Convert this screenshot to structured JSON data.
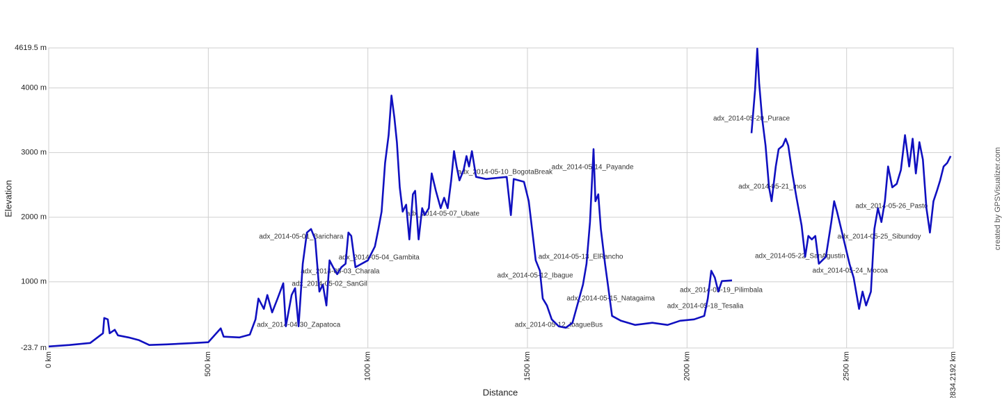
{
  "chart_data": {
    "type": "line",
    "color": "#1010c0",
    "grid": true,
    "xlabel": "Distance",
    "ylabel": "Elevation",
    "credit": "created by GPSVisualizer.com",
    "xlim": [
      0,
      2834.2192
    ],
    "ylim": [
      -23.7,
      4619.5
    ],
    "xticks": [
      {
        "value": 0,
        "label": "0 km"
      },
      {
        "value": 500,
        "label": "500 km"
      },
      {
        "value": 1000,
        "label": "1000 km"
      },
      {
        "value": 1500,
        "label": "1500 km"
      },
      {
        "value": 2000,
        "label": "2000 km"
      },
      {
        "value": 2500,
        "label": "2500 km"
      },
      {
        "value": 2834.2192,
        "label": "2834.2192 km"
      }
    ],
    "yticks": [
      {
        "value": -23.7,
        "label": "-23.7 m"
      },
      {
        "value": 1000,
        "label": "1000 m"
      },
      {
        "value": 2000,
        "label": "2000 m"
      },
      {
        "value": 3000,
        "label": "3000 m"
      },
      {
        "value": 4000,
        "label": "4000 m"
      },
      {
        "value": 4619.5,
        "label": "4619.5 m"
      }
    ],
    "x": [
      0,
      65,
      130,
      170,
      174,
      185,
      191,
      207,
      217,
      250,
      283,
      315,
      370,
      457,
      500,
      539,
      548,
      598,
      630,
      648,
      657,
      674,
      685,
      700,
      717,
      735,
      743,
      761,
      772,
      783,
      796,
      809,
      822,
      835,
      848,
      859,
      870,
      880,
      891,
      904,
      917,
      930,
      939,
      948,
      961,
      1000,
      1022,
      1033,
      1043,
      1054,
      1065,
      1074,
      1083,
      1091,
      1100,
      1109,
      1120,
      1130,
      1141,
      1148,
      1159,
      1170,
      1178,
      1191,
      1200,
      1213,
      1228,
      1239,
      1250,
      1261,
      1270,
      1278,
      1287,
      1300,
      1309,
      1317,
      1326,
      1339,
      1370,
      1435,
      1448,
      1457,
      1489,
      1504,
      1517,
      1526,
      1539,
      1548,
      1561,
      1576,
      1598,
      1620,
      1641,
      1674,
      1685,
      1696,
      1707,
      1713,
      1722,
      1730,
      1743,
      1752,
      1765,
      1793,
      1837,
      1891,
      1939,
      1978,
      2022,
      2054,
      2065,
      2076,
      2087,
      2098,
      2109,
      2141,
      2170,
      2202,
      2213,
      2220,
      2226,
      2235,
      2246,
      2257,
      2265,
      2278,
      2287,
      2300,
      2309,
      2317,
      2330,
      2343,
      2359,
      2370,
      2380,
      2391,
      2402,
      2413,
      2435,
      2452,
      2461,
      2470,
      2483,
      2496,
      2509,
      2522,
      2539,
      2550,
      2561,
      2576,
      2587,
      2598,
      2609,
      2620,
      2630,
      2643,
      2657,
      2670,
      2683,
      2696,
      2707,
      2717,
      2728,
      2739,
      2750,
      2761,
      2772,
      2783,
      2793,
      2804,
      2815,
      2826
    ],
    "values": [
      0,
      22,
      54,
      204,
      441,
      419,
      204,
      258,
      172,
      140,
      97,
      22,
      32,
      54,
      65,
      280,
      151,
      140,
      183,
      419,
      742,
      581,
      796,
      527,
      742,
      978,
      312,
      796,
      903,
      312,
      1280,
      1763,
      1817,
      1656,
      849,
      957,
      634,
      1333,
      1226,
      1118,
      1226,
      1280,
      1763,
      1710,
      1226,
      1333,
      1548,
      1817,
      2086,
      2839,
      3269,
      3882,
      3538,
      3161,
      2462,
      2086,
      2194,
      1656,
      2355,
      2409,
      1656,
      2140,
      2032,
      2140,
      2677,
      2409,
      2140,
      2301,
      2140,
      2570,
      3022,
      2785,
      2570,
      2731,
      2946,
      2785,
      3022,
      2624,
      2591,
      2624,
      2032,
      2591,
      2548,
      2247,
      1710,
      1333,
      1172,
      742,
      634,
      419,
      312,
      290,
      366,
      957,
      1280,
      1925,
      3054,
      2247,
      2355,
      1817,
      1280,
      957,
      473,
      398,
      333,
      366,
      333,
      398,
      419,
      473,
      742,
      1172,
      1065,
      849,
      1011,
      1022,
      null,
      3301,
      3968,
      4610,
      4075,
      3538,
      3108,
      2462,
      2247,
      2785,
      3054,
      3108,
      3215,
      3108,
      2677,
      2301,
      1871,
      1387,
      1710,
      1656,
      1710,
      1280,
      1387,
      1925,
      2247,
      2086,
      1817,
      1548,
      1280,
      1065,
      581,
      849,
      634,
      849,
      1817,
      2140,
      1925,
      2247,
      2785,
      2462,
      2516,
      2731,
      3269,
      2785,
      3215,
      2677,
      3161,
      2892,
      2140,
      1763,
      2247,
      2409,
      2570,
      2785,
      2839,
      2946
    ],
    "annotations": [
      {
        "text": "adx_2014-05-20_Purace",
        "x": 2202,
        "y": 3527
      },
      {
        "text": "adx_2014-05-21_Inos",
        "x": 2267,
        "y": 2473
      },
      {
        "text": "adx_2014-05-14_Payande",
        "x": 1704,
        "y": 2774
      },
      {
        "text": "adx_2014-05-10_BogotaBreak",
        "x": 1430,
        "y": 2699
      },
      {
        "text": "adx_2014-05-07_Ubate",
        "x": 1235,
        "y": 2054
      },
      {
        "text": "adx_2014-05-01_Barichara",
        "x": 791,
        "y": 1699
      },
      {
        "text": "adx_2014-05-04_Gambita",
        "x": 1035,
        "y": 1376
      },
      {
        "text": "adx_2014-05-03_Charala",
        "x": 913,
        "y": 1161
      },
      {
        "text": "adx_2014-05-02_SanGil",
        "x": 880,
        "y": 968
      },
      {
        "text": "adx_2014-04-30_Zapatoca",
        "x": 783,
        "y": 333
      },
      {
        "text": "adx_2014-05-13_ElRancho",
        "x": 1667,
        "y": 1387
      },
      {
        "text": "adx_2014-05-12_Ibague",
        "x": 1524,
        "y": 1097
      },
      {
        "text": "adx_2014-05-15_Natagaima",
        "x": 1761,
        "y": 742
      },
      {
        "text": "adx_2014-05-12_IbagueBus",
        "x": 1598,
        "y": 333
      },
      {
        "text": "adx_2014-05-19_Pilimbala",
        "x": 2107,
        "y": 871
      },
      {
        "text": "adx_2014-05-18_Tesalia",
        "x": 2057,
        "y": 624
      },
      {
        "text": "adx_2014-05-25_Sibundoy",
        "x": 2602,
        "y": 1699
      },
      {
        "text": "adx_2014-05-22_SanAgustin",
        "x": 2354,
        "y": 1398
      },
      {
        "text": "adx_2014-05-24_Mocoa",
        "x": 2511,
        "y": 1172
      },
      {
        "text": "adx_2014-05-26_Pasto",
        "x": 2641,
        "y": 2172
      }
    ]
  }
}
